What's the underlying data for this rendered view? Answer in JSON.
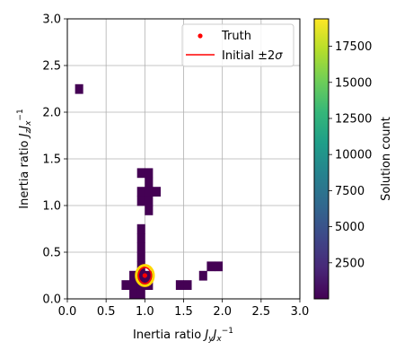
{
  "chart_data": {
    "type": "heatmap",
    "xlabel": {
      "base": "Inertia ratio ",
      "j1": "J",
      "s1": "y",
      "j2": "J",
      "s2": "x",
      "sup": "−1"
    },
    "ylabel": {
      "base": "Inertia ratio ",
      "j1": "J",
      "s1": "z",
      "j2": "J",
      "s2": "x",
      "sup": "−1"
    },
    "xlim": [
      0.0,
      3.0
    ],
    "ylim": [
      0.0,
      3.0
    ],
    "xticks": [
      "0.0",
      "0.5",
      "1.0",
      "1.5",
      "2.0",
      "2.5",
      "3.0"
    ],
    "yticks": [
      "0.0",
      "0.5",
      "1.0",
      "1.5",
      "2.0",
      "2.5",
      "3.0"
    ],
    "grid": true,
    "bin_width": 0.1,
    "cells": [
      [
        0.15,
        2.25
      ],
      [
        0.95,
        1.35
      ],
      [
        1.05,
        1.35
      ],
      [
        1.05,
        1.25
      ],
      [
        0.95,
        1.15
      ],
      [
        1.05,
        1.15
      ],
      [
        1.15,
        1.15
      ],
      [
        0.95,
        1.05
      ],
      [
        1.05,
        1.05
      ],
      [
        1.05,
        0.95
      ],
      [
        0.95,
        0.75
      ],
      [
        0.95,
        0.65
      ],
      [
        0.95,
        0.55
      ],
      [
        0.95,
        0.45
      ],
      [
        0.95,
        0.35
      ],
      [
        1.85,
        0.35
      ],
      [
        1.95,
        0.35
      ],
      [
        0.95,
        0.25
      ],
      [
        1.05,
        0.25
      ],
      [
        1.75,
        0.25
      ],
      [
        0.85,
        0.15
      ],
      [
        0.95,
        0.15
      ],
      [
        1.05,
        0.15
      ],
      [
        1.55,
        0.15
      ],
      [
        0.75,
        0.15
      ],
      [
        1.45,
        0.15
      ],
      [
        0.85,
        0.05
      ],
      [
        0.95,
        0.05
      ],
      [
        0.85,
        0.25
      ]
    ],
    "cell_color": "#440154",
    "truth": {
      "x": 1.0,
      "y": 0.25,
      "color": "#ff0000"
    },
    "initial_ellipse": {
      "cx": 1.0,
      "cy": 0.25,
      "rx": 0.1,
      "ry": 0.1,
      "color": "#ff0000"
    },
    "highlight_ring": {
      "color": "#ffd700"
    },
    "legend": {
      "position": "upper right",
      "truth_label": "Truth",
      "initial_label_text": "Initial ±2",
      "initial_label_sigma": "σ"
    },
    "colorbar": {
      "label": "Solution count",
      "min": 0,
      "max": 19400,
      "ticks": [
        "2500",
        "5000",
        "7500",
        "10000",
        "12500",
        "15000",
        "17500"
      ],
      "tick_values": [
        2500,
        5000,
        7500,
        10000,
        12500,
        15000,
        17500
      ],
      "colors": [
        "#440154",
        "#482878",
        "#3e4989",
        "#31688e",
        "#26828e",
        "#1f9e89",
        "#35b779",
        "#6ece58",
        "#b5de2b",
        "#fde725"
      ]
    }
  }
}
